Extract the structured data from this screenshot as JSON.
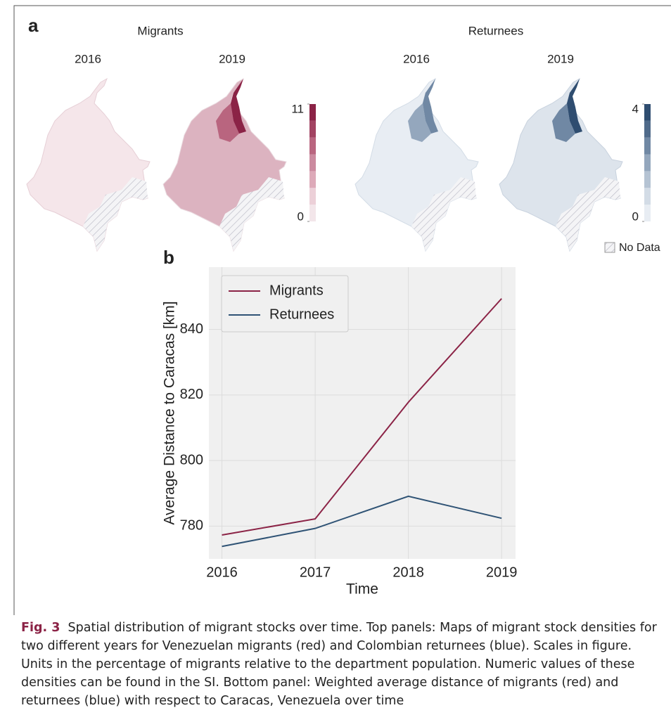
{
  "panel_a": {
    "label": "a",
    "migrants": {
      "title": "Migrants",
      "years": [
        "2016",
        "2019"
      ],
      "colorbar": {
        "ticks": [
          0,
          11
        ],
        "colors": [
          "#f3e6ea",
          "#ecd0d8",
          "#ddaab9",
          "#cb8a9f",
          "#b9657f",
          "#a24362",
          "#8b2346"
        ]
      }
    },
    "returnees": {
      "title": "Returnees",
      "years": [
        "2016",
        "2019"
      ],
      "colorbar": {
        "ticks": [
          0,
          4
        ],
        "colors": [
          "#e8edf3",
          "#d3dce6",
          "#b5c3d3",
          "#94a7bd",
          "#7088a4",
          "#4f6a8a",
          "#2f4d70"
        ]
      }
    },
    "no_data": "No Data"
  },
  "chart_data": {
    "type": "line",
    "label": "b",
    "x_label": "Time",
    "y_label": "Average Distance to Caracas [km]",
    "x": [
      2016,
      2017,
      2018,
      2019
    ],
    "xlim": [
      2015.86,
      2019.15
    ],
    "xticks": [
      2016,
      2017,
      2018,
      2019
    ],
    "ylim": [
      770,
      859
    ],
    "yticks": [
      780,
      800,
      820,
      840
    ],
    "grid": true,
    "legend": "upper-left",
    "series": [
      {
        "name": "Migrants",
        "color": "#8b2346",
        "values": [
          777.3,
          782.2,
          817.8,
          849.4
        ]
      },
      {
        "name": "Returnees",
        "color": "#2f5375",
        "values": [
          773.8,
          779.3,
          789.1,
          782.4
        ]
      }
    ]
  },
  "caption": {
    "label": "Fig. 3",
    "text": "Spatial distribution of migrant stocks over time. Top panels: Maps of migrant stock densities for two different years for Venezuelan migrants (red) and Colombian returnees (blue). Scales in figure. Units in the percentage of migrants relative to the department population. Numeric values of these densities can be found in the SI. Bottom panel: Weighted average distance of migrants (red) and returnees (blue) with respect to Caracas, Venezuela over time"
  }
}
